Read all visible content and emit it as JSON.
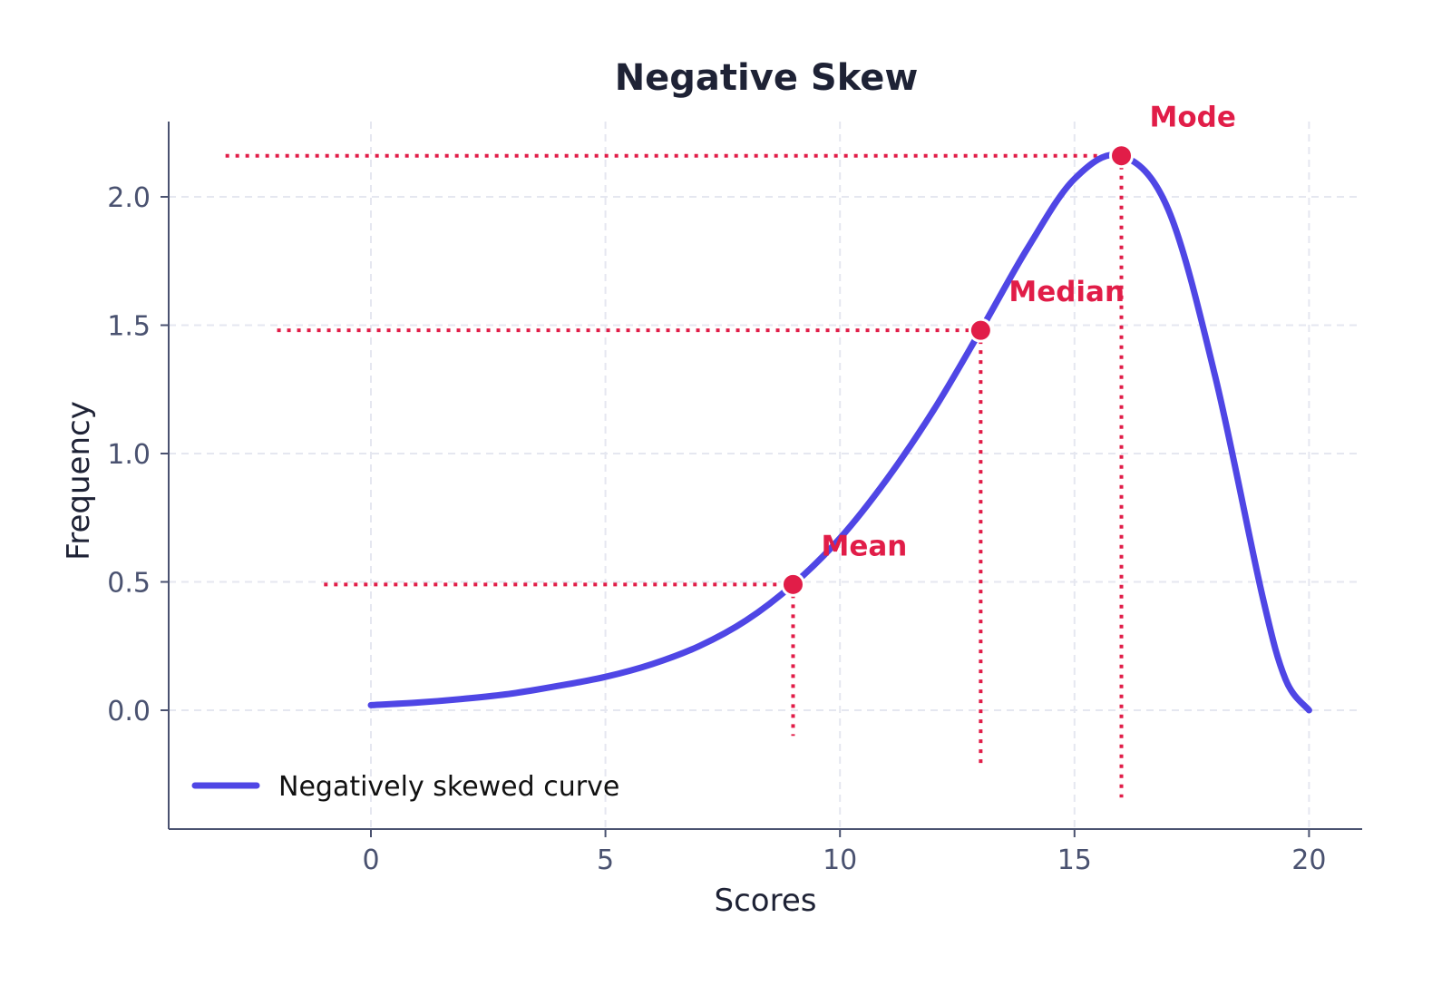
{
  "chart_data": {
    "type": "line",
    "title": "Negative Skew",
    "xlabel": "Scores",
    "ylabel": "Frequency",
    "xlim": [
      -4.3,
      21.2
    ],
    "ylim": [
      -0.46,
      2.3
    ],
    "x_ticks": [
      0,
      5,
      10,
      15,
      20
    ],
    "x_tick_labels": [
      "0",
      "5",
      "10",
      "15",
      "20"
    ],
    "y_ticks": [
      0.0,
      0.5,
      1.0,
      1.5,
      2.0
    ],
    "y_tick_labels": [
      "0.0",
      "0.5",
      "1.0",
      "1.5",
      "2.0"
    ],
    "grid": true,
    "legend_position": "lower-left",
    "colors": {
      "curve": "#4f46e5",
      "markers": "#e11d48",
      "grid": "#e5e7f0",
      "axis": "#4a5270"
    },
    "series": [
      {
        "name": "Negatively skewed curve",
        "x": [
          0,
          1,
          2,
          3,
          4,
          5,
          6,
          7,
          8,
          9,
          10,
          11,
          12,
          13,
          14,
          15,
          16,
          17,
          18,
          19,
          19.5,
          20
        ],
        "y": [
          0.02,
          0.03,
          0.045,
          0.065,
          0.095,
          0.13,
          0.18,
          0.25,
          0.35,
          0.49,
          0.67,
          0.9,
          1.17,
          1.48,
          1.8,
          2.07,
          2.16,
          1.95,
          1.3,
          0.45,
          0.12,
          0.0
        ]
      }
    ],
    "annotations": [
      {
        "label": "Mean",
        "x": 9,
        "y": 0.49,
        "hline_from_x": -1.0,
        "vline_to_y": -0.1
      },
      {
        "label": "Median",
        "x": 13,
        "y": 1.48,
        "hline_from_x": -2.0,
        "vline_to_y": -0.22
      },
      {
        "label": "Mode",
        "x": 16,
        "y": 2.16,
        "hline_from_x": -3.1,
        "vline_to_y": -0.34
      }
    ]
  }
}
